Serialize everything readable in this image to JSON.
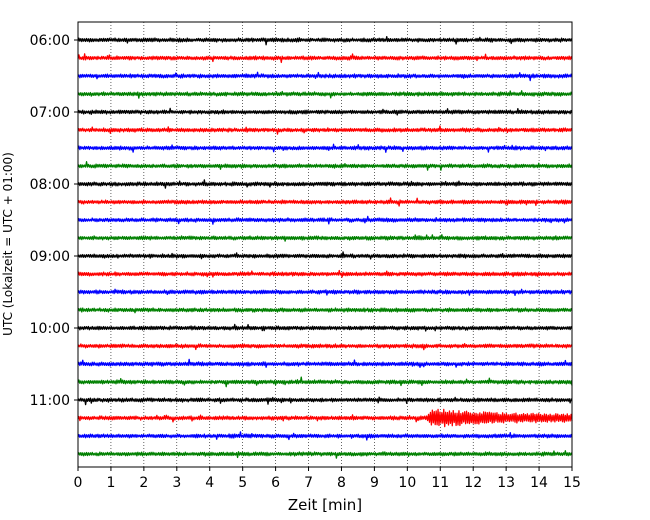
{
  "chart_data": {
    "type": "line",
    "title": "",
    "xlabel": "Zeit  [min]",
    "ylabel": "UTC (Lokalzeit = UTC + 01:00)",
    "xlim": [
      0,
      15
    ],
    "x_ticks": [
      "0",
      "1",
      "2",
      "3",
      "4",
      "5",
      "6",
      "7",
      "8",
      "9",
      "10",
      "11",
      "12",
      "13",
      "14",
      "15"
    ],
    "y_ticks": [
      "06:00",
      "07:00",
      "08:00",
      "09:00",
      "10:00",
      "11:00"
    ],
    "grid": "vertical dotted lines at each minute",
    "legend": "none",
    "trace_interval_minutes": 15,
    "first_trace_time": "06:00",
    "trace_colors": [
      "#000000",
      "#ff0000",
      "#0000ff",
      "#008000"
    ],
    "traces": [
      {
        "time": "06:00",
        "color": "#000000"
      },
      {
        "time": "06:15",
        "color": "#ff0000"
      },
      {
        "time": "06:30",
        "color": "#0000ff"
      },
      {
        "time": "06:45",
        "color": "#008000"
      },
      {
        "time": "07:00",
        "color": "#000000"
      },
      {
        "time": "07:15",
        "color": "#ff0000"
      },
      {
        "time": "07:30",
        "color": "#0000ff"
      },
      {
        "time": "07:45",
        "color": "#008000"
      },
      {
        "time": "08:00",
        "color": "#000000"
      },
      {
        "time": "08:15",
        "color": "#ff0000"
      },
      {
        "time": "08:30",
        "color": "#0000ff"
      },
      {
        "time": "08:45",
        "color": "#008000"
      },
      {
        "time": "09:00",
        "color": "#000000"
      },
      {
        "time": "09:15",
        "color": "#ff0000"
      },
      {
        "time": "09:30",
        "color": "#0000ff"
      },
      {
        "time": "09:45",
        "color": "#008000"
      },
      {
        "time": "10:00",
        "color": "#000000"
      },
      {
        "time": "10:15",
        "color": "#ff0000"
      },
      {
        "time": "10:30",
        "color": "#0000ff"
      },
      {
        "time": "10:45",
        "color": "#008000"
      },
      {
        "time": "11:00",
        "color": "#000000"
      },
      {
        "time": "11:15",
        "color": "#ff0000"
      },
      {
        "time": "11:30",
        "color": "#0000ff"
      },
      {
        "time": "11:45",
        "color": "#008000"
      }
    ],
    "events": [
      {
        "trace": "08:45",
        "start_min": 10.2,
        "end_min": 10.5,
        "peak_amplitude": 2.5
      },
      {
        "trace": "11:15",
        "start_min": 10.6,
        "end_min": 15.0,
        "peak_amplitude": 9
      }
    ]
  }
}
